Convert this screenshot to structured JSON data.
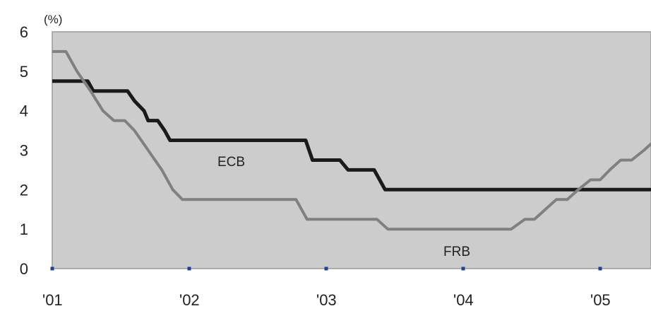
{
  "chart_data": {
    "type": "line",
    "unit_label": "(%)",
    "ylim": [
      0,
      6
    ],
    "yticks": [
      "0",
      "1",
      "2",
      "3",
      "4",
      "5",
      "6"
    ],
    "xlim": [
      2001.0,
      2006.8
    ],
    "xticks": [
      {
        "label": "'01",
        "value": 2001.0
      },
      {
        "label": "'02",
        "value": 2002.0
      },
      {
        "label": "'03",
        "value": 2003.0
      },
      {
        "label": "'04",
        "value": 2004.0
      },
      {
        "label": "'05",
        "value": 2005.0
      }
    ],
    "plot_background": "#cccccc",
    "series": [
      {
        "name": "ECB",
        "color": "#1a1a1a",
        "points": [
          [
            2001.0,
            4.75
          ],
          [
            2001.26,
            4.75
          ],
          [
            2001.3,
            4.5
          ],
          [
            2001.55,
            4.5
          ],
          [
            2001.6,
            4.25
          ],
          [
            2001.67,
            4.0
          ],
          [
            2001.7,
            3.75
          ],
          [
            2001.77,
            3.75
          ],
          [
            2001.82,
            3.5
          ],
          [
            2001.86,
            3.25
          ],
          [
            2002.85,
            3.25
          ],
          [
            2002.9,
            2.75
          ],
          [
            2003.1,
            2.75
          ],
          [
            2003.16,
            2.5
          ],
          [
            2003.35,
            2.5
          ],
          [
            2003.43,
            2.0
          ],
          [
            2006.8,
            2.0
          ]
        ]
      },
      {
        "name": "FRB",
        "color": "#808080",
        "points": [
          [
            2001.0,
            5.5
          ],
          [
            2001.1,
            5.5
          ],
          [
            2001.18,
            5.0
          ],
          [
            2001.28,
            4.5
          ],
          [
            2001.37,
            4.0
          ],
          [
            2001.45,
            3.75
          ],
          [
            2001.53,
            3.75
          ],
          [
            2001.6,
            3.5
          ],
          [
            2001.7,
            3.0
          ],
          [
            2001.8,
            2.5
          ],
          [
            2001.88,
            2.0
          ],
          [
            2001.95,
            1.75
          ],
          [
            2002.78,
            1.75
          ],
          [
            2002.86,
            1.25
          ],
          [
            2003.37,
            1.25
          ],
          [
            2003.45,
            1.0
          ],
          [
            2004.35,
            1.0
          ],
          [
            2004.45,
            1.25
          ],
          [
            2004.52,
            1.25
          ],
          [
            2004.6,
            1.5
          ],
          [
            2004.68,
            1.75
          ],
          [
            2004.76,
            1.75
          ],
          [
            2004.84,
            2.0
          ],
          [
            2004.93,
            2.25
          ],
          [
            2005.0,
            2.25
          ],
          [
            2005.07,
            2.5
          ],
          [
            2005.15,
            2.75
          ],
          [
            2005.23,
            2.75
          ],
          [
            2005.32,
            3.0
          ],
          [
            2005.4,
            3.25
          ]
        ]
      }
    ]
  }
}
